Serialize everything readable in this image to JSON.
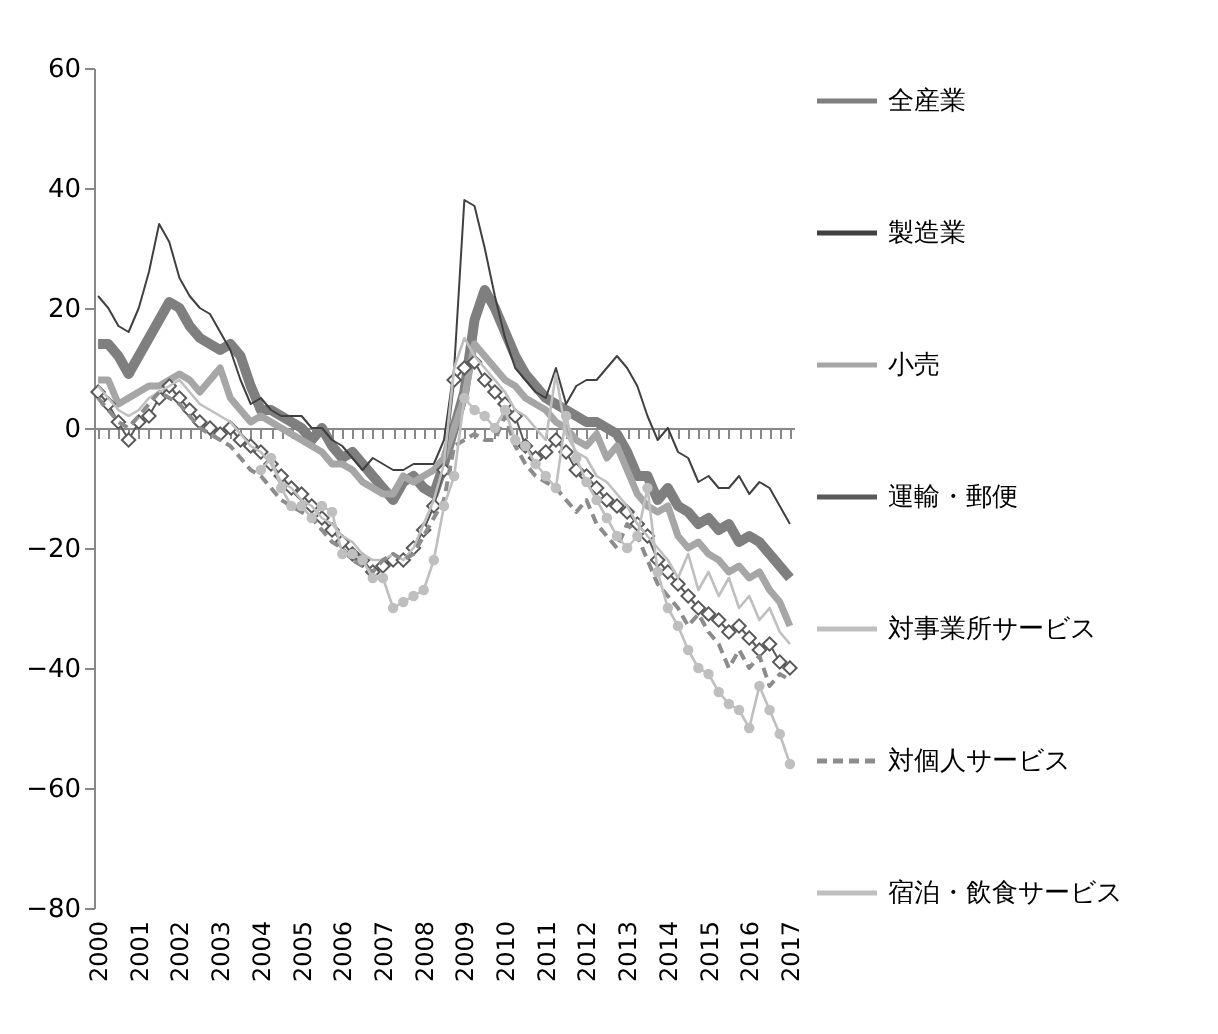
{
  "chart_data": {
    "type": "line",
    "categories": [
      "2000",
      null,
      null,
      null,
      "2001",
      null,
      null,
      null,
      "2002",
      null,
      null,
      null,
      "2003",
      null,
      null,
      null,
      "2004",
      null,
      null,
      null,
      "2005",
      null,
      null,
      null,
      "2006",
      null,
      null,
      null,
      "2007",
      null,
      null,
      null,
      "2008",
      null,
      null,
      null,
      "2009",
      null,
      null,
      null,
      "2010",
      null,
      null,
      null,
      "2011",
      null,
      null,
      null,
      "2012",
      null,
      null,
      null,
      "2013",
      null,
      null,
      null,
      "2014",
      null,
      null,
      null,
      "2015",
      null,
      null,
      null,
      "2016",
      null,
      null,
      null,
      "2017"
    ],
    "ylim": [
      -80,
      60
    ],
    "yticks": [
      -80,
      -60,
      -40,
      -20,
      0,
      20,
      40,
      60
    ],
    "legend": "right",
    "series": [
      {
        "name": "全産業",
        "color": "#7f7f7f",
        "line_style": "solid",
        "marker": "none",
        "values": [
          14,
          14,
          12,
          9,
          12,
          15,
          18,
          21,
          20,
          17,
          15,
          14,
          13,
          14,
          12,
          7,
          3,
          3,
          2,
          1,
          0,
          -2,
          0,
          -3,
          -5,
          -4,
          -6,
          -8,
          -10,
          -12,
          -9,
          -8,
          -10,
          -11,
          -6,
          0,
          6,
          18,
          23,
          20,
          16,
          12,
          9,
          7,
          5,
          4,
          3,
          2,
          1,
          1,
          0,
          -1,
          -4,
          -8,
          -8,
          -12,
          -10,
          -13,
          -14,
          -16,
          -15,
          -17,
          -16,
          -19,
          -18,
          -19,
          -21,
          -23,
          -25
        ]
      },
      {
        "name": "製造業",
        "color": "#404040",
        "line_style": "solid",
        "marker": "none",
        "values": [
          22,
          20,
          17,
          16,
          20,
          26,
          34,
          31,
          25,
          22,
          20,
          19,
          16,
          13,
          8,
          4,
          5,
          3,
          2,
          2,
          2,
          0,
          0,
          -2,
          -3,
          -5,
          -7,
          -5,
          -6,
          -7,
          -7,
          -6,
          -6,
          -6,
          -2,
          10,
          38,
          37,
          30,
          22,
          15,
          10,
          8,
          6,
          5,
          10,
          4,
          7,
          8,
          8,
          10,
          12,
          10,
          7,
          2,
          -2,
          0,
          -4,
          -5,
          -9,
          -8,
          -10,
          -10,
          -8,
          -11,
          -9,
          -10,
          -13,
          -16
        ]
      },
      {
        "name": "小売",
        "color": "#a6a6a6",
        "line_style": "solid",
        "marker": "none",
        "values": [
          8,
          8,
          4,
          5,
          6,
          7,
          7,
          8,
          9,
          8,
          6,
          8,
          10,
          5,
          3,
          1,
          2,
          1,
          0,
          -1,
          -2,
          -3,
          -4,
          -6,
          -6,
          -7,
          -9,
          -10,
          -11,
          -11,
          -8,
          -9,
          -8,
          -7,
          -5,
          0,
          5,
          14,
          12,
          10,
          8,
          7,
          5,
          4,
          3,
          1,
          0,
          -2,
          -3,
          -1,
          -5,
          -3,
          -7,
          -11,
          -13,
          -14,
          -13,
          -18,
          -20,
          -19,
          -21,
          -22,
          -24,
          -23,
          -25,
          -24,
          -27,
          -29,
          -33
        ]
      },
      {
        "name": "運輸・郵便",
        "color": "#595959",
        "line_style": "solid",
        "marker": "diamond",
        "values": [
          6,
          4,
          1,
          -2,
          1,
          2,
          5,
          7,
          5,
          3,
          1,
          0,
          -1,
          0,
          -2,
          -3,
          -4,
          -6,
          -8,
          -10,
          -11,
          -13,
          -15,
          -17,
          -19,
          -21,
          -22,
          -24,
          -23,
          -22,
          -22,
          -20,
          -17,
          -13,
          -7,
          8,
          10,
          11,
          8,
          6,
          4,
          2,
          -3,
          -5,
          -4,
          -2,
          -4,
          -7,
          -8,
          -10,
          -12,
          -13,
          -14,
          -16,
          -18,
          -22,
          -24,
          -26,
          -28,
          -30,
          -31,
          -32,
          -34,
          -33,
          -35,
          -37,
          -36,
          -39,
          -40
        ]
      },
      {
        "name": "対事業所サービス",
        "color": "#bfbfbf",
        "line_style": "solid",
        "marker": "none",
        "values": [
          7,
          5,
          3,
          2,
          3,
          5,
          6,
          7,
          8,
          6,
          4,
          3,
          2,
          1,
          -1,
          -3,
          -4,
          -6,
          -9,
          -10,
          -12,
          -13,
          -15,
          -16,
          -18,
          -19,
          -21,
          -22,
          -22,
          -21,
          -22,
          -20,
          -16,
          -12,
          -6,
          10,
          15,
          12,
          10,
          8,
          6,
          3,
          2,
          0,
          -2,
          9,
          -1,
          -4,
          -5,
          -8,
          -9,
          -11,
          -13,
          -16,
          -18,
          -20,
          -22,
          -25,
          -21,
          -27,
          -24,
          -28,
          -25,
          -30,
          -28,
          -32,
          -30,
          -34,
          -36
        ]
      },
      {
        "name": "対個人サービス",
        "color": "#8c8c8c",
        "line_style": "dashed",
        "marker": "none",
        "values": [
          5,
          3,
          1,
          0,
          2,
          4,
          6,
          5,
          4,
          2,
          0,
          -1,
          -2,
          -3,
          -5,
          -7,
          -8,
          -10,
          -12,
          -13,
          -14,
          -15,
          -17,
          -19,
          -20,
          -22,
          -23,
          -24,
          -22,
          -21,
          -22,
          -21,
          -18,
          -15,
          -12,
          -3,
          -2,
          -1,
          -2,
          -2,
          2,
          -3,
          -6,
          -8,
          -9,
          -10,
          -12,
          -14,
          -12,
          -16,
          -18,
          -20,
          -16,
          -18,
          -22,
          -26,
          -28,
          -30,
          -33,
          -31,
          -34,
          -36,
          -40,
          -37,
          -40,
          -38,
          -43,
          -41,
          -42
        ]
      },
      {
        "name": "宿泊・飲食サービス",
        "color": "#bfbfbf",
        "line_style": "solid",
        "marker": "circle",
        "values": [
          null,
          null,
          null,
          null,
          null,
          null,
          null,
          null,
          null,
          null,
          null,
          null,
          null,
          null,
          null,
          null,
          -7,
          -5,
          -10,
          -13,
          -13,
          -15,
          -13,
          -14,
          -21,
          -21,
          -22,
          -25,
          -25,
          -30,
          -29,
          -28,
          -27,
          -22,
          -13,
          -8,
          5,
          3,
          2,
          0,
          3,
          -2,
          -3,
          -6,
          -8,
          -10,
          2,
          -5,
          -9,
          -12,
          -15,
          -18,
          -20,
          -18,
          -10,
          -24,
          -30,
          -33,
          -37,
          -40,
          -41,
          -44,
          -46,
          -47,
          -50,
          -43,
          -47,
          -51,
          -56
        ]
      }
    ]
  }
}
